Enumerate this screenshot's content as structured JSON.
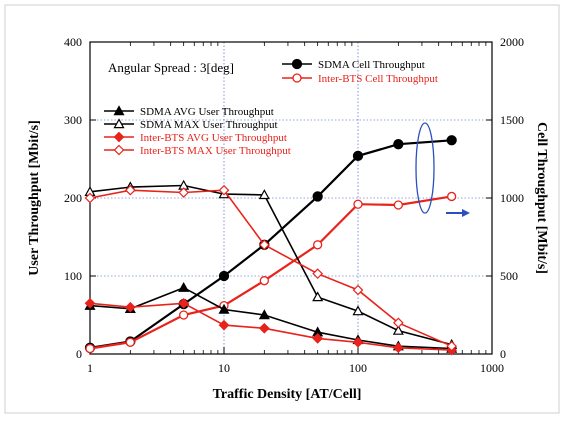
{
  "chart_data": {
    "type": "line",
    "x_scale": "log",
    "x_label": "Traffic Density [AT/Cell]",
    "x_range": [
      1,
      1000
    ],
    "x_ticks": [
      1,
      10,
      100,
      1000
    ],
    "x_tick_labels": [
      "1",
      "10",
      "100",
      "1000"
    ],
    "y_left_label": "User Throughput [Mbit/s]",
    "y_left_range": [
      0,
      400
    ],
    "y_left_ticks": [
      0,
      100,
      200,
      300,
      400
    ],
    "y_left_tick_labels": [
      "0",
      "100",
      "200",
      "300",
      "400"
    ],
    "y_right_label": "Cell Throughput [Mbit/s]",
    "y_right_range": [
      0,
      2000
    ],
    "y_right_ticks": [
      0,
      500,
      1000,
      1500,
      2000
    ],
    "y_right_tick_labels": [
      "0",
      "500",
      "1000",
      "1500",
      "2000"
    ],
    "grid": "dotted",
    "annotation": "Angular Spread : 3[deg]",
    "x": [
      1,
      2,
      5,
      10,
      20,
      50,
      100,
      200,
      500
    ],
    "series": [
      {
        "name": "SDMA Cell Throughput",
        "axis": "right",
        "color": "#000000",
        "marker": "filled-circle",
        "values": [
          40,
          80,
          320,
          500,
          700,
          1010,
          1270,
          1345,
          1370
        ]
      },
      {
        "name": "Inter-BTS Cell Throughput",
        "axis": "right",
        "color": "#e8231c",
        "marker": "open-circle",
        "values": [
          35,
          75,
          250,
          310,
          470,
          700,
          960,
          955,
          1010
        ]
      },
      {
        "name": "SDMA AVG User Throughput",
        "axis": "left",
        "color": "#000000",
        "marker": "filled-triangle",
        "values": [
          62,
          58,
          85,
          57,
          50,
          28,
          18,
          10,
          7
        ]
      },
      {
        "name": "SDMA MAX User Throughput",
        "axis": "left",
        "color": "#000000",
        "marker": "open-triangle",
        "values": [
          208,
          214,
          216,
          205,
          204,
          73,
          55,
          30,
          12
        ]
      },
      {
        "name": "Inter-BTS AVG User Throughput",
        "axis": "left",
        "color": "#e8231c",
        "marker": "filled-diamond",
        "values": [
          65,
          60,
          65,
          37,
          33,
          20,
          15,
          8,
          5
        ]
      },
      {
        "name": "Inter-BTS MAX User Throughput",
        "axis": "left",
        "color": "#e8231c",
        "marker": "open-diamond",
        "values": [
          200,
          210,
          207,
          210,
          140,
          103,
          82,
          40,
          10
        ]
      }
    ],
    "legend_top": [
      "SDMA Cell Throughput",
      "Inter-BTS Cell Throughput"
    ],
    "legend_mid": [
      "SDMA AVG User Throughput",
      "SDMA MAX User Throughput",
      "Inter-BTS AVG User Throughput",
      "Inter-BTS MAX User Throughput"
    ]
  }
}
